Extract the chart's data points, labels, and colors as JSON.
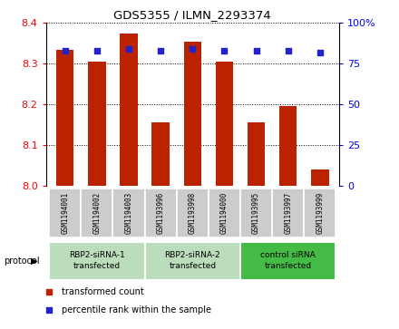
{
  "title": "GDS5355 / ILMN_2293374",
  "samples": [
    "GSM1194001",
    "GSM1194002",
    "GSM1194003",
    "GSM1193996",
    "GSM1193998",
    "GSM1194000",
    "GSM1193995",
    "GSM1193997",
    "GSM1193999"
  ],
  "bar_values": [
    8.335,
    8.305,
    8.375,
    8.155,
    8.355,
    8.305,
    8.155,
    8.195,
    8.04
  ],
  "percentile_values": [
    83,
    83,
    84,
    83,
    84,
    83,
    83,
    83,
    82
  ],
  "ylim_left": [
    8.0,
    8.4
  ],
  "ylim_right": [
    0,
    100
  ],
  "yticks_left": [
    8.0,
    8.1,
    8.2,
    8.3,
    8.4
  ],
  "yticks_right": [
    0,
    25,
    50,
    75,
    100
  ],
  "bar_color": "#bb2200",
  "dot_color": "#2222cc",
  "groups": [
    {
      "label": "RBP2-siRNA-1\ntransfected",
      "start": 0,
      "end": 3,
      "color": "#bbddbb"
    },
    {
      "label": "RBP2-siRNA-2\ntransfected",
      "start": 3,
      "end": 6,
      "color": "#bbddbb"
    },
    {
      "label": "control siRNA\ntransfected",
      "start": 6,
      "end": 9,
      "color": "#44bb44"
    }
  ],
  "legend_bar_label": "transformed count",
  "legend_dot_label": "percentile rank within the sample",
  "protocol_label": "protocol",
  "bar_width": 0.55,
  "sample_box_color": "#cccccc",
  "bg_color": "#ffffff"
}
